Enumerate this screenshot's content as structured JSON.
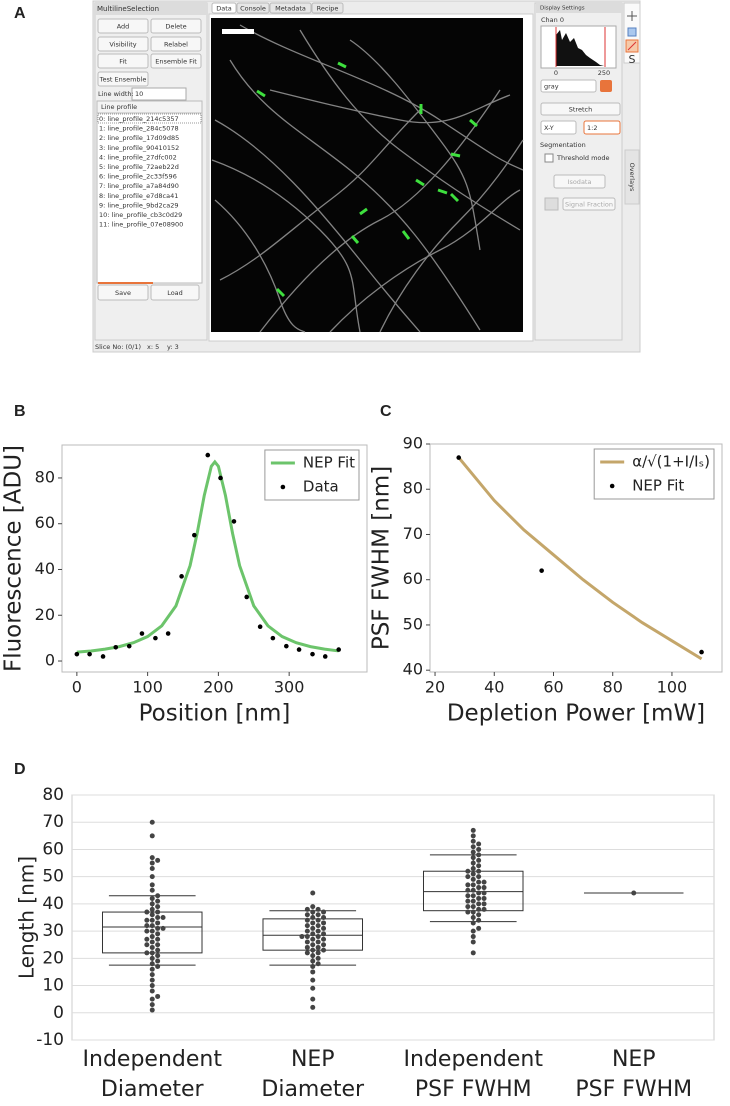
{
  "panel_labels": [
    "A",
    "B",
    "C",
    "D"
  ],
  "screenshot": {
    "left_panel": {
      "title": "MultilineSelection",
      "buttons": [
        "Add",
        "Delete",
        "Visibility",
        "Relabel",
        "Fit",
        "Ensemble Fit",
        "Test Ensemble"
      ],
      "line_width_label": "Line width:",
      "line_width": "10",
      "list_header": "Line profile",
      "items": [
        "0: line_profile_214c5357",
        "1: line_profile_284c5078",
        "2: line_profile_17d09d85",
        "3: line_profile_90410152",
        "4: line_profile_27dfc002",
        "5: line_profile_72aeb22d",
        "6: line_profile_2c33f596",
        "7: line_profile_a7a84d90",
        "8: line_profile_e7d8ca41",
        "9: line_profile_9bd2ca29",
        "10: line_profile_cb3c0d29",
        "11: line_profile_07e08900"
      ],
      "bottom_buttons": [
        "Save",
        "Load"
      ]
    },
    "tabs": [
      "Data",
      "Console",
      "Metadata",
      "Recipe"
    ],
    "display_settings": {
      "title": "Display Settings",
      "channel": "Chan 0",
      "hist_ticks": [
        "0",
        "250"
      ],
      "colormap": "gray",
      "stretch": "Stretch",
      "view": "X-Y",
      "zoom": "1:2",
      "segmentation": "Segmentation",
      "threshold": "Threshold mode",
      "isodata": "Isodata",
      "signal_fraction": "Signal Fraction"
    },
    "overlays": "Overlays",
    "status": [
      "Slice No: (0/1)",
      "x: 5",
      "y: 3"
    ]
  },
  "chart_data": [
    {
      "type": "line",
      "xlabel": "Position [nm]",
      "ylabel": "Fluorescence [ADU]",
      "xlim": [
        -21,
        410
      ],
      "ylim": [
        -4.8,
        94.4
      ],
      "xticks": [
        0,
        100,
        200,
        300
      ],
      "yticks": [
        0,
        20,
        40,
        60,
        80
      ],
      "legend": "upper right",
      "series": [
        {
          "name": "NEP Fit",
          "color": "#6cc46b",
          "style": "line",
          "x": [
            0,
            20,
            40,
            60,
            80,
            100,
            120,
            140,
            160,
            170,
            180,
            190,
            195,
            200,
            210,
            220,
            230,
            250,
            270,
            290,
            310,
            330,
            350,
            370
          ],
          "values": [
            3.9,
            4.4,
            5.2,
            6.3,
            8.0,
            10.7,
            15.4,
            24.1,
            41.7,
            55.8,
            72.3,
            85.1,
            87.0,
            85.1,
            72.3,
            55.8,
            41.7,
            24.1,
            15.4,
            10.7,
            8.0,
            6.3,
            5.2,
            4.4
          ]
        },
        {
          "name": "Data",
          "color": "#000000",
          "style": "points",
          "x": [
            0,
            18,
            37,
            55,
            74,
            92,
            111,
            129,
            148,
            166,
            185,
            203,
            222,
            240,
            259,
            277,
            296,
            314,
            333,
            351,
            370
          ],
          "values": [
            3,
            3,
            2,
            6,
            6.5,
            12,
            10,
            12,
            37,
            55,
            90,
            80,
            61,
            28,
            15,
            10,
            6.5,
            5,
            3,
            2,
            5
          ]
        }
      ]
    },
    {
      "type": "line",
      "xlabel": "Depletion Power [mW]",
      "ylabel": "PSF FWHM [nm]",
      "xlim": [
        18.3,
        116.9
      ],
      "ylim": [
        39.6,
        90
      ],
      "xticks": [
        20,
        40,
        60,
        80,
        100
      ],
      "yticks": [
        40,
        50,
        60,
        70,
        80,
        90
      ],
      "legend": "upper right",
      "series": [
        {
          "name": "α/√(1+I/Iₛ)",
          "color": "#c4a66a",
          "style": "line",
          "x": [
            28,
            40,
            50,
            60,
            70,
            80,
            90,
            100,
            110
          ],
          "values": [
            87,
            77.5,
            71,
            65.5,
            60,
            55,
            50.5,
            46.5,
            42.5
          ]
        },
        {
          "name": "NEP Fit",
          "color": "#000000",
          "style": "points",
          "x": [
            28,
            56,
            110
          ],
          "values": [
            87,
            62,
            44
          ]
        }
      ]
    },
    {
      "type": "box",
      "ylabel": "Length [nm]",
      "categories": [
        [
          "Independent",
          "Diameter"
        ],
        [
          "NEP",
          "Diameter"
        ],
        [
          "Independent",
          "PSF FWHM"
        ],
        [
          "NEP",
          "PSF FWHM"
        ]
      ],
      "ylim": [
        -10,
        80
      ],
      "yticks": [
        -10,
        0,
        10,
        20,
        30,
        40,
        50,
        60,
        70,
        80
      ],
      "grid": true,
      "color": "#444444",
      "boxes": [
        {
          "whislo": 17.5,
          "q1": 22,
          "med": 31.5,
          "q3": 37,
          "whishi": 43
        },
        {
          "whislo": 17.5,
          "q1": 23,
          "med": 28.5,
          "q3": 34.5,
          "whishi": 37.5
        },
        {
          "whislo": 33.5,
          "q1": 37.5,
          "med": 44.5,
          "q3": 52,
          "whishi": 58
        },
        {
          "whislo": 44,
          "q1": 44,
          "med": 44,
          "q3": 44,
          "whishi": 44
        }
      ],
      "points": [
        [
          1,
          3,
          5,
          6,
          8,
          10,
          12,
          14,
          16,
          17,
          18,
          19,
          20,
          21,
          22,
          22,
          23,
          24,
          25,
          25,
          26,
          27,
          27,
          28,
          29,
          30,
          30,
          31,
          31,
          32,
          32,
          33,
          34,
          34,
          35,
          35,
          36,
          37,
          37,
          38,
          39,
          40,
          41,
          42,
          43,
          45,
          47,
          50,
          53,
          55,
          56,
          57,
          65,
          70
        ],
        [
          2,
          5,
          9,
          12,
          15,
          17,
          18,
          19,
          20,
          21,
          22,
          22,
          23,
          23,
          24,
          24,
          25,
          25,
          26,
          26,
          27,
          27,
          28,
          28,
          28,
          29,
          29,
          30,
          30,
          31,
          31,
          32,
          32,
          33,
          33,
          34,
          34,
          35,
          35,
          36,
          36,
          37,
          37,
          38,
          38,
          39,
          44
        ],
        [
          22,
          26,
          28,
          30,
          31,
          33,
          34,
          35,
          36,
          37,
          37,
          38,
          38,
          39,
          39,
          40,
          40,
          41,
          41,
          42,
          42,
          43,
          43,
          44,
          44,
          45,
          45,
          46,
          46,
          47,
          47,
          48,
          48,
          49,
          50,
          50,
          51,
          52,
          52,
          53,
          54,
          55,
          56,
          57,
          58,
          59,
          60,
          61,
          62,
          63,
          65,
          67
        ],
        [
          44
        ]
      ]
    }
  ]
}
